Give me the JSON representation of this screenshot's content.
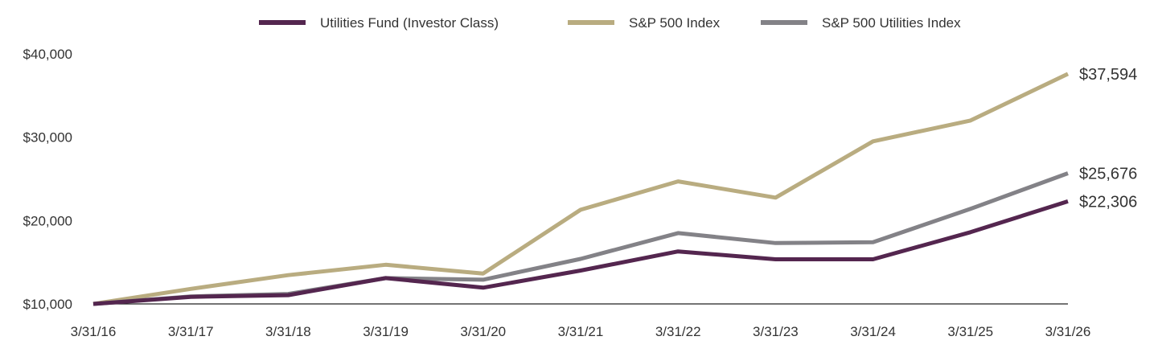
{
  "chart_data": {
    "type": "line",
    "categories": [
      "3/31/16",
      "3/31/17",
      "3/31/18",
      "3/31/19",
      "3/31/20",
      "3/31/21",
      "3/31/22",
      "3/31/23",
      "3/31/24",
      "3/31/25",
      "3/31/26"
    ],
    "series": [
      {
        "name": "Utilities Fund (Investor Class)",
        "color": "#54264f",
        "values": [
          10000,
          10850,
          11050,
          13100,
          11950,
          14000,
          16300,
          15350,
          15350,
          18600,
          22306
        ],
        "end_label": "$22,306"
      },
      {
        "name": "S&P 500 Index",
        "color": "#b9ac80",
        "values": [
          10000,
          11800,
          13450,
          14700,
          13650,
          21300,
          24700,
          22750,
          29500,
          32000,
          37594
        ],
        "end_label": "$37,594"
      },
      {
        "name": "S&P 500 Utilities Index",
        "color": "#838287",
        "values": [
          10000,
          10900,
          11200,
          13100,
          12900,
          15400,
          18500,
          17300,
          17400,
          21400,
          25676
        ],
        "end_label": "$25,676"
      }
    ],
    "yticks": [
      10000,
      20000,
      30000,
      40000
    ],
    "ytick_labels": [
      "$10,000",
      "$20,000",
      "$30,000",
      "$40,000"
    ],
    "ylim": [
      10000,
      40000
    ],
    "grid": false,
    "legend_position": "top"
  }
}
